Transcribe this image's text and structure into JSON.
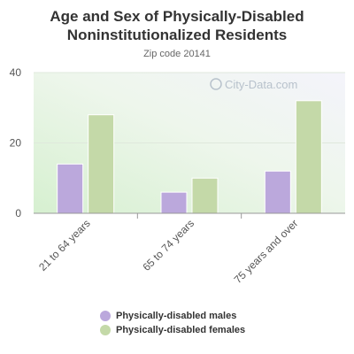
{
  "chart_data": {
    "type": "bar",
    "title": "Age and Sex of Physically-Disabled Noninstitutionalized Residents",
    "subtitle": "Zip code 20141",
    "watermark": "City-Data.com",
    "categories": [
      "21 to 64 years",
      "65 to 74 years",
      "75 years and over"
    ],
    "series": [
      {
        "name": "Physically-disabled males",
        "values": [
          14,
          6,
          12
        ],
        "color": "#bba8dc"
      },
      {
        "name": "Physically-disabled females",
        "values": [
          28,
          10,
          32
        ],
        "color": "#c4d9a8"
      }
    ],
    "ylim": [
      0,
      40
    ],
    "yticks": [
      "0",
      "20",
      "40"
    ],
    "grid": true,
    "legend_position": "bottom"
  }
}
